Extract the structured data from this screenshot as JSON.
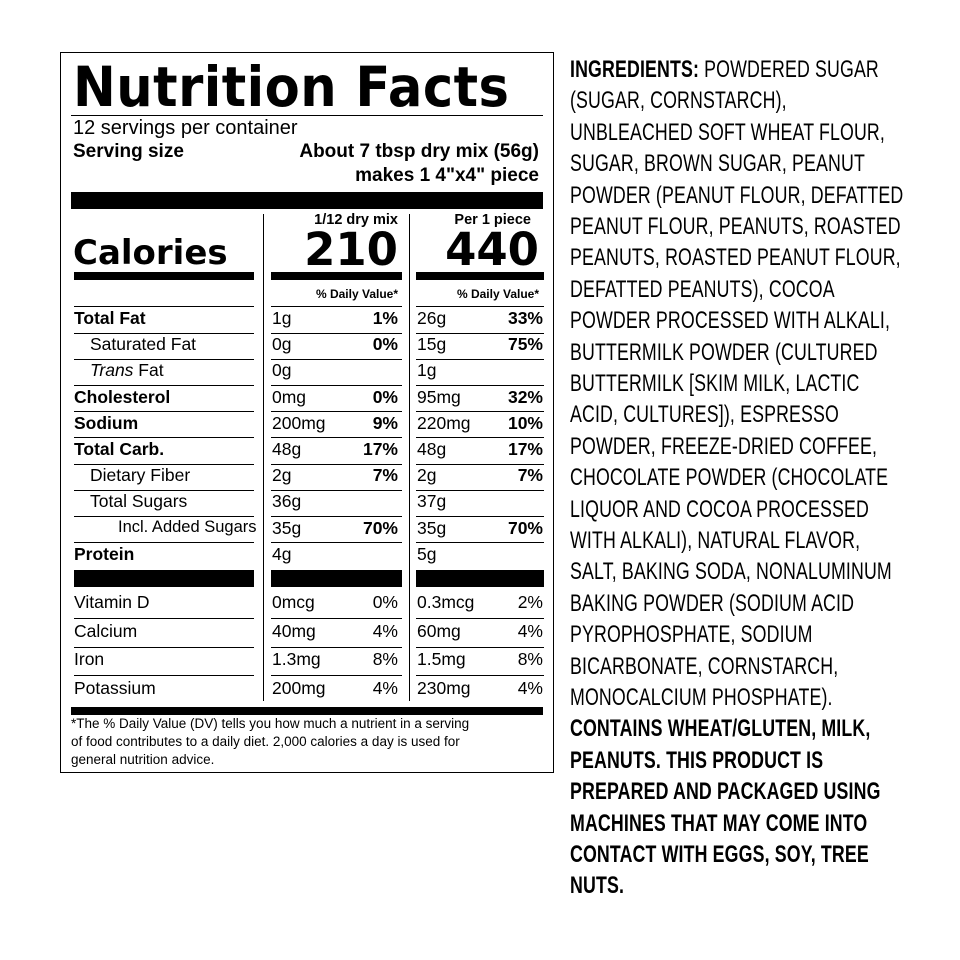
{
  "label": {
    "title": "Nutrition Facts",
    "servings": "12 servings per container",
    "serving_size_label": "Serving size",
    "serving_size_value": "About 7 tbsp dry mix (56g)",
    "serving_size_value2": "makes 1 4\"x4\" piece",
    "calories_label": "Calories",
    "col1_header": "1/12 dry mix",
    "col2_header": "Per 1 piece",
    "col1_calories": "210",
    "col2_calories": "440",
    "dv_header": "% Daily Value*",
    "nutrients": [
      {
        "name": "Total Fat",
        "bold": true,
        "indent": 0,
        "c1": "1g",
        "p1": "1%",
        "c2": "26g",
        "p2": "33%"
      },
      {
        "name": "Saturated Fat",
        "bold": false,
        "indent": 1,
        "c1": "0g",
        "p1": "0%",
        "c2": "15g",
        "p2": "75%"
      },
      {
        "name": "Trans Fat",
        "bold": false,
        "indent": 1,
        "italic_prefix": "Trans",
        "c1": "0g",
        "p1": "",
        "c2": "1g",
        "p2": ""
      },
      {
        "name": "Cholesterol",
        "bold": true,
        "indent": 0,
        "c1": "0mg",
        "p1": "0%",
        "c2": "95mg",
        "p2": "32%"
      },
      {
        "name": "Sodium",
        "bold": true,
        "indent": 0,
        "c1": "200mg",
        "p1": "9%",
        "c2": "220mg",
        "p2": "10%"
      },
      {
        "name": "Total Carb.",
        "bold": true,
        "indent": 0,
        "c1": "48g",
        "p1": "17%",
        "c2": "48g",
        "p2": "17%"
      },
      {
        "name": "Dietary Fiber",
        "bold": false,
        "indent": 1,
        "c1": "2g",
        "p1": "7%",
        "c2": "2g",
        "p2": "7%"
      },
      {
        "name": "Total Sugars",
        "bold": false,
        "indent": 1,
        "c1": "36g",
        "p1": "",
        "c2": "37g",
        "p2": ""
      },
      {
        "name": "Incl. Added Sugars",
        "bold": false,
        "indent": 2,
        "c1": "35g",
        "p1": "70%",
        "c2": "35g",
        "p2": "70%"
      },
      {
        "name": "Protein",
        "bold": true,
        "indent": 0,
        "c1": "4g",
        "p1": "",
        "c2": "5g",
        "p2": ""
      }
    ],
    "vitamins": [
      {
        "name": "Vitamin D",
        "c1": "0mcg",
        "p1": "0%",
        "c2": "0.3mcg",
        "p2": "2%"
      },
      {
        "name": "Calcium",
        "c1": "40mg",
        "p1": "4%",
        "c2": "60mg",
        "p2": "4%"
      },
      {
        "name": "Iron",
        "c1": "1.3mg",
        "p1": "8%",
        "c2": "1.5mg",
        "p2": "8%"
      },
      {
        "name": "Potassium",
        "c1": "200mg",
        "p1": "4%",
        "c2": "230mg",
        "p2": "4%"
      }
    ],
    "footnote": [
      "*The % Daily Value (DV) tells you how much a nutrient in a serving",
      "of food contributes to a daily diet. 2,000 calories a day is used for",
      "general nutrition advice."
    ]
  },
  "ingredients": {
    "heading": "INGREDIENTS:",
    "lines": [
      {
        "text": " POWDERED SUGAR",
        "bold": false
      },
      {
        "text": "(SUGAR, CORNSTARCH),",
        "bold": false
      },
      {
        "text": "UNBLEACHED SOFT WHEAT FLOUR,",
        "bold": false
      },
      {
        "text": "SUGAR, BROWN SUGAR, PEANUT",
        "bold": false
      },
      {
        "text": "POWDER (PEANUT FLOUR, DEFATTED",
        "bold": false
      },
      {
        "text": "PEANUT FLOUR, PEANUTS, ROASTED",
        "bold": false
      },
      {
        "text": "PEANUTS, ROASTED PEANUT FLOUR,",
        "bold": false
      },
      {
        "text": "DEFATTED PEANUTS), COCOA",
        "bold": false
      },
      {
        "text": "POWDER PROCESSED WITH ALKALI,",
        "bold": false
      },
      {
        "text": "BUTTERMILK POWDER (CULTURED",
        "bold": false
      },
      {
        "text": "BUTTERMILK [SKIM MILK, LACTIC",
        "bold": false
      },
      {
        "text": "ACID, CULTURES]), ESPRESSO",
        "bold": false
      },
      {
        "text": "POWDER, FREEZE-DRIED COFFEE,",
        "bold": false
      },
      {
        "text": "CHOCOLATE POWDER (CHOCOLATE",
        "bold": false
      },
      {
        "text": "LIQUOR AND COCOA PROCESSED",
        "bold": false
      },
      {
        "text": "WITH ALKALI), NATURAL FLAVOR,",
        "bold": false
      },
      {
        "text": "SALT, BAKING SODA, NONALUMINUM",
        "bold": false
      },
      {
        "text": "BAKING POWDER (SODIUM ACID",
        "bold": false
      },
      {
        "text": "PYROPHOSPHATE, SODIUM",
        "bold": false
      },
      {
        "text": "BICARBONATE, CORNSTARCH,",
        "bold": false
      },
      {
        "text": "MONOCALCIUM PHOSPHATE).",
        "bold": false
      },
      {
        "text": "CONTAINS WHEAT/GLUTEN, MILK,",
        "bold": true
      },
      {
        "text": "PEANUTS. THIS PRODUCT IS",
        "bold": true
      },
      {
        "text": "PREPARED AND PACKAGED USING",
        "bold": true
      },
      {
        "text": "MACHINES THAT MAY COME INTO",
        "bold": true
      },
      {
        "text": "CONTACT WITH EGGS, SOY, TREE",
        "bold": true
      },
      {
        "text": "NUTS.",
        "bold": true
      }
    ]
  }
}
